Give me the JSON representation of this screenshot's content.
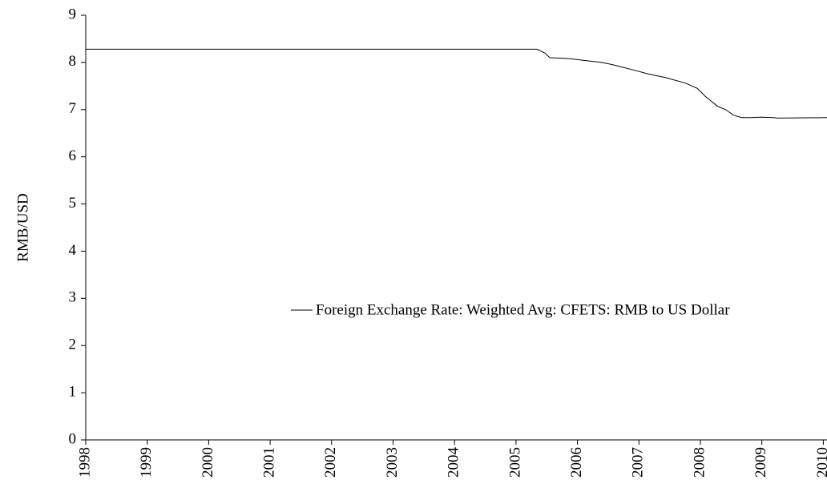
{
  "chart_data": {
    "type": "line",
    "y_label": "RMB/USD",
    "x": [
      1998,
      2005.34,
      2005.47,
      2005.55,
      2005.86,
      2006.26,
      2006.39,
      2006.58,
      2006.91,
      2007.17,
      2007.43,
      2007.76,
      2007.95,
      2008.08,
      2008.28,
      2008.41,
      2008.54,
      2008.67,
      2008.8,
      2009.0,
      2009.19,
      2009.26,
      2010.06
    ],
    "series": [
      {
        "name": "Foreign Exchange Rate: Weighted Avg: CFETS: RMB to US Dollar",
        "color": "#000000",
        "values": [
          8.28,
          8.28,
          8.2,
          8.1,
          8.08,
          8.02,
          8.0,
          7.95,
          7.84,
          7.75,
          7.68,
          7.56,
          7.45,
          7.28,
          7.07,
          7.0,
          6.88,
          6.83,
          6.83,
          6.84,
          6.83,
          6.82,
          6.83
        ]
      }
    ],
    "xlim": [
      1998,
      2010.06
    ],
    "xticks": [
      1998,
      1999,
      2000,
      2001,
      2002,
      2003,
      2004,
      2005,
      2006,
      2007,
      2008,
      2009,
      2010
    ],
    "ylim": [
      0,
      9
    ],
    "yticks": [
      0,
      1,
      2,
      3,
      4,
      5,
      6,
      7,
      8,
      9
    ],
    "grid": false
  }
}
